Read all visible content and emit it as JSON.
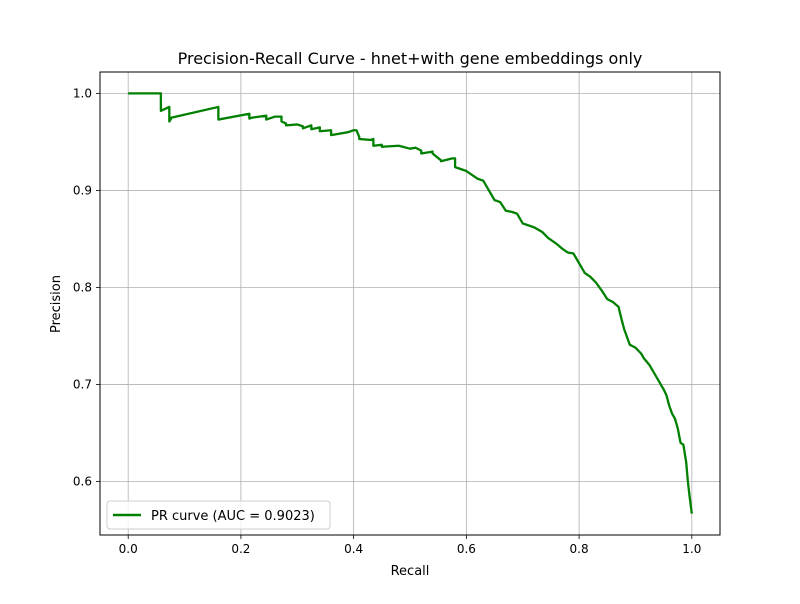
{
  "chart_data": {
    "type": "line",
    "title": "Precision-Recall Curve - hnet+with gene embeddings only",
    "xlabel": "Recall",
    "ylabel": "Precision",
    "xlim": [
      -0.05,
      1.05
    ],
    "ylim": [
      0.545,
      1.022
    ],
    "xticks": [
      0.0,
      0.2,
      0.4,
      0.6,
      0.8,
      1.0
    ],
    "xtick_labels": [
      "0.0",
      "0.2",
      "0.4",
      "0.6",
      "0.8",
      "1.0"
    ],
    "yticks": [
      0.6,
      0.7,
      0.8,
      0.9,
      1.0
    ],
    "ytick_labels": [
      "0.6",
      "0.7",
      "0.8",
      "0.9",
      "1.0"
    ],
    "grid": true,
    "legend_position": "lower-left",
    "series": [
      {
        "name": "PR curve (AUC = 0.9023)",
        "color": "#008000",
        "x": [
          0.0,
          0.058,
          0.058,
          0.073,
          0.073,
          0.077,
          0.16,
          0.16,
          0.215,
          0.215,
          0.22,
          0.245,
          0.245,
          0.26,
          0.272,
          0.272,
          0.28,
          0.28,
          0.3,
          0.31,
          0.31,
          0.325,
          0.325,
          0.34,
          0.34,
          0.36,
          0.36,
          0.39,
          0.4,
          0.405,
          0.41,
          0.41,
          0.43,
          0.435,
          0.435,
          0.45,
          0.45,
          0.48,
          0.5,
          0.51,
          0.52,
          0.52,
          0.54,
          0.54,
          0.555,
          0.555,
          0.575,
          0.58,
          0.58,
          0.6,
          0.61,
          0.615,
          0.62,
          0.63,
          0.64,
          0.65,
          0.66,
          0.67,
          0.68,
          0.69,
          0.7,
          0.71,
          0.72,
          0.735,
          0.745,
          0.76,
          0.77,
          0.78,
          0.79,
          0.795,
          0.8,
          0.81,
          0.82,
          0.83,
          0.84,
          0.85,
          0.86,
          0.87,
          0.875,
          0.88,
          0.89,
          0.9,
          0.91,
          0.915,
          0.925,
          0.935,
          0.945,
          0.95,
          0.955,
          0.96,
          0.965,
          0.97,
          0.975,
          0.98,
          0.985,
          0.99,
          0.993,
          0.996,
          1.0
        ],
        "y": [
          1.0,
          1.0,
          0.982,
          0.986,
          0.971,
          0.975,
          0.986,
          0.973,
          0.979,
          0.974,
          0.975,
          0.977,
          0.973,
          0.976,
          0.976,
          0.971,
          0.969,
          0.967,
          0.968,
          0.966,
          0.964,
          0.967,
          0.963,
          0.965,
          0.961,
          0.962,
          0.957,
          0.96,
          0.962,
          0.962,
          0.955,
          0.953,
          0.952,
          0.953,
          0.946,
          0.947,
          0.945,
          0.946,
          0.943,
          0.944,
          0.941,
          0.938,
          0.94,
          0.938,
          0.931,
          0.93,
          0.933,
          0.933,
          0.924,
          0.92,
          0.916,
          0.914,
          0.912,
          0.91,
          0.9,
          0.89,
          0.888,
          0.879,
          0.878,
          0.876,
          0.866,
          0.864,
          0.862,
          0.857,
          0.851,
          0.845,
          0.84,
          0.836,
          0.835,
          0.83,
          0.825,
          0.815,
          0.811,
          0.805,
          0.797,
          0.788,
          0.785,
          0.78,
          0.768,
          0.757,
          0.741,
          0.738,
          0.732,
          0.727,
          0.72,
          0.71,
          0.7,
          0.695,
          0.689,
          0.678,
          0.67,
          0.665,
          0.655,
          0.64,
          0.638,
          0.62,
          0.6,
          0.585,
          0.567
        ]
      }
    ]
  }
}
